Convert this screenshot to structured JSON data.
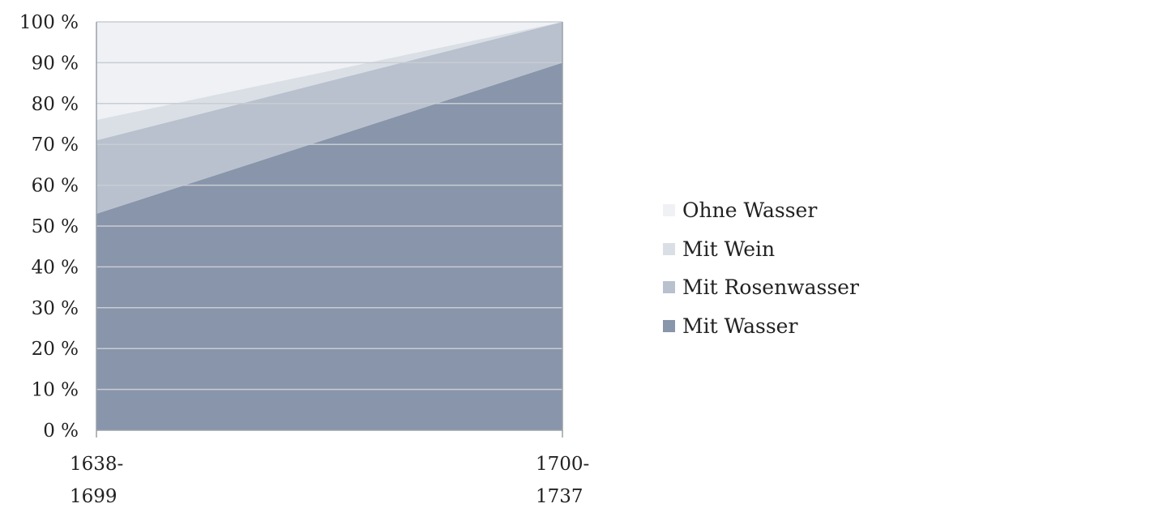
{
  "chart_data": {
    "type": "area",
    "stacked": true,
    "title": "",
    "xlabel": "",
    "ylabel": "",
    "categories": [
      [
        "1638-",
        "1699"
      ],
      [
        "1700-",
        "1737"
      ]
    ],
    "ylim": [
      0,
      100
    ],
    "yticks": [
      "0 %",
      "10 %",
      "20 %",
      "30 %",
      "40 %",
      "50 %",
      "60 %",
      "70 %",
      "80 %",
      "90 %",
      "100 %"
    ],
    "series": [
      {
        "name": "Mit Wasser",
        "values": [
          53,
          90
        ],
        "color": "#8895aa"
      },
      {
        "name": "Mit Rosenwasser",
        "values": [
          18,
          10
        ],
        "color": "#b8c1cd"
      },
      {
        "name": "Mit Wein",
        "values": [
          5,
          0
        ],
        "color": "#dadfe6"
      },
      {
        "name": "Ohne Wasser",
        "values": [
          24,
          0
        ],
        "color": "#eff1f5"
      }
    ],
    "grid": true,
    "legend_position": "right"
  }
}
